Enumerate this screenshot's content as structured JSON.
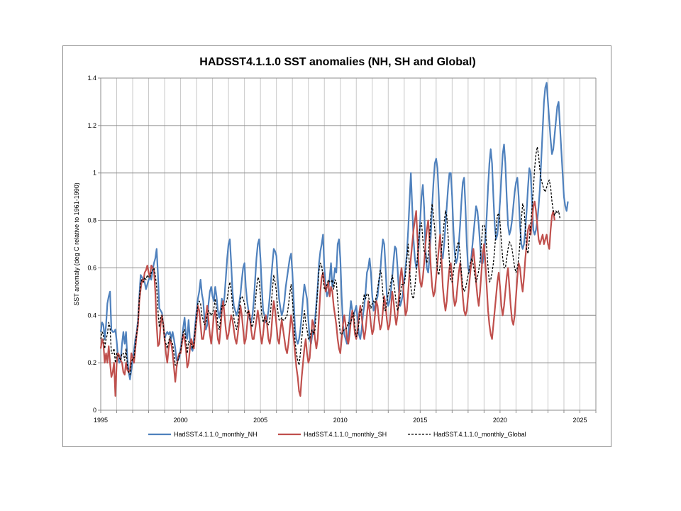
{
  "chart_data": {
    "type": "line",
    "title": "HADSST4.1.1.0 SST anomalies (NH, SH and Global)",
    "xlabel": "",
    "ylabel": "SST anomaly (deg C relative to 1961-1990)",
    "xlim": [
      1995,
      2026
    ],
    "ylim": [
      0,
      1.4
    ],
    "x_ticks": [
      1995,
      2000,
      2005,
      2010,
      2015,
      2020,
      2025
    ],
    "y_ticks": [
      0,
      0.2,
      0.4,
      0.6,
      0.8,
      1,
      1.2,
      1.4
    ],
    "y_tick_labels": [
      "0",
      "0.2",
      "0.4",
      "0.6",
      "0.8",
      "1",
      "1.2",
      "1.4"
    ],
    "grid": true,
    "legend_position": "bottom",
    "x_start": 1995.0,
    "x_step": 0.0833333,
    "series": [
      {
        "name": "HadSST.4.1.1.0_monthly_NH",
        "color": "#4f81bd",
        "dash": "",
        "values": [
          0.33,
          0.37,
          0.36,
          0.3,
          0.36,
          0.45,
          0.48,
          0.5,
          0.34,
          0.33,
          0.33,
          0.34,
          0.29,
          0.22,
          0.2,
          0.21,
          0.28,
          0.33,
          0.28,
          0.33,
          0.22,
          0.16,
          0.13,
          0.17,
          0.21,
          0.25,
          0.3,
          0.33,
          0.38,
          0.48,
          0.57,
          0.56,
          0.55,
          0.54,
          0.51,
          0.53,
          0.55,
          0.56,
          0.55,
          0.59,
          0.62,
          0.64,
          0.68,
          0.57,
          0.43,
          0.42,
          0.41,
          0.36,
          0.3,
          0.32,
          0.33,
          0.32,
          0.33,
          0.3,
          0.33,
          0.3,
          0.26,
          0.21,
          0.21,
          0.22,
          0.26,
          0.3,
          0.35,
          0.39,
          0.32,
          0.3,
          0.38,
          0.3,
          0.26,
          0.25,
          0.3,
          0.36,
          0.42,
          0.47,
          0.5,
          0.55,
          0.49,
          0.46,
          0.38,
          0.34,
          0.36,
          0.45,
          0.5,
          0.52,
          0.48,
          0.46,
          0.52,
          0.48,
          0.42,
          0.39,
          0.42,
          0.47,
          0.43,
          0.48,
          0.56,
          0.64,
          0.7,
          0.72,
          0.62,
          0.5,
          0.44,
          0.42,
          0.4,
          0.42,
          0.45,
          0.49,
          0.55,
          0.6,
          0.62,
          0.52,
          0.46,
          0.42,
          0.38,
          0.37,
          0.4,
          0.46,
          0.55,
          0.64,
          0.7,
          0.72,
          0.64,
          0.52,
          0.42,
          0.4,
          0.37,
          0.38,
          0.42,
          0.48,
          0.55,
          0.62,
          0.68,
          0.67,
          0.65,
          0.55,
          0.47,
          0.43,
          0.4,
          0.42,
          0.46,
          0.52,
          0.56,
          0.6,
          0.64,
          0.66,
          0.58,
          0.46,
          0.34,
          0.3,
          0.28,
          0.3,
          0.34,
          0.4,
          0.47,
          0.53,
          0.5,
          0.47,
          0.38,
          0.3,
          0.28,
          0.32,
          0.34,
          0.38,
          0.45,
          0.52,
          0.62,
          0.67,
          0.7,
          0.74,
          0.6,
          0.52,
          0.48,
          0.5,
          0.56,
          0.62,
          0.52,
          0.55,
          0.6,
          0.58,
          0.7,
          0.72,
          0.64,
          0.48,
          0.36,
          0.32,
          0.3,
          0.28,
          0.32,
          0.4,
          0.46,
          0.42,
          0.4,
          0.42,
          0.44,
          0.38,
          0.32,
          0.3,
          0.34,
          0.4,
          0.44,
          0.5,
          0.58,
          0.6,
          0.64,
          0.58,
          0.48,
          0.42,
          0.44,
          0.46,
          0.48,
          0.54,
          0.58,
          0.66,
          0.72,
          0.7,
          0.6,
          0.48,
          0.44,
          0.46,
          0.5,
          0.56,
          0.63,
          0.69,
          0.68,
          0.6,
          0.5,
          0.44,
          0.46,
          0.49,
          0.55,
          0.6,
          0.66,
          0.76,
          0.88,
          1.0,
          0.86,
          0.72,
          0.64,
          0.6,
          0.62,
          0.7,
          0.8,
          0.9,
          0.95,
          0.85,
          0.68,
          0.6,
          0.58,
          0.64,
          0.74,
          0.86,
          0.96,
          1.04,
          1.06,
          1.02,
          0.9,
          0.74,
          0.66,
          0.64,
          0.7,
          0.78,
          0.86,
          0.94,
          1.0,
          1.0,
          0.9,
          0.76,
          0.66,
          0.62,
          0.64,
          0.7,
          0.78,
          0.88,
          0.96,
          0.98,
          0.86,
          0.7,
          0.6,
          0.58,
          0.62,
          0.68,
          0.74,
          0.8,
          0.86,
          0.84,
          0.78,
          0.7,
          0.62,
          0.62,
          0.66,
          0.72,
          0.82,
          0.94,
          1.04,
          1.1,
          1.04,
          0.9,
          0.78,
          0.72,
          0.74,
          0.8,
          0.88,
          0.98,
          1.08,
          1.12,
          1.04,
          0.9,
          0.78,
          0.74,
          0.76,
          0.8,
          0.86,
          0.92,
          0.96,
          0.98,
          0.9,
          0.78,
          0.7,
          0.68,
          0.7,
          0.76,
          0.84,
          0.94,
          1.02,
          1.0,
          0.88,
          0.76,
          0.74,
          0.76,
          0.8,
          0.86,
          0.94,
          1.06,
          1.18,
          1.3,
          1.36,
          1.38,
          1.3,
          1.22,
          1.14,
          1.08,
          1.1,
          1.16,
          1.22,
          1.28,
          1.3,
          1.2,
          1.1,
          1.0,
          0.9,
          0.86,
          0.84,
          0.88
        ]
      },
      {
        "name": "HadSST.4.1.1.0_monthly_SH",
        "color": "#c0504d",
        "dash": "",
        "values": [
          0.26,
          0.3,
          0.28,
          0.2,
          0.24,
          0.2,
          0.27,
          0.2,
          0.14,
          0.16,
          0.2,
          0.06,
          0.2,
          0.24,
          0.23,
          0.21,
          0.2,
          0.16,
          0.15,
          0.2,
          0.17,
          0.16,
          0.17,
          0.24,
          0.22,
          0.2,
          0.26,
          0.32,
          0.36,
          0.46,
          0.51,
          0.55,
          0.54,
          0.58,
          0.59,
          0.61,
          0.58,
          0.56,
          0.61,
          0.6,
          0.59,
          0.5,
          0.36,
          0.27,
          0.28,
          0.36,
          0.4,
          0.36,
          0.3,
          0.24,
          0.2,
          0.26,
          0.3,
          0.28,
          0.24,
          0.18,
          0.12,
          0.18,
          0.22,
          0.24,
          0.24,
          0.28,
          0.32,
          0.3,
          0.26,
          0.18,
          0.2,
          0.26,
          0.3,
          0.28,
          0.26,
          0.33,
          0.38,
          0.44,
          0.42,
          0.36,
          0.3,
          0.3,
          0.34,
          0.4,
          0.44,
          0.38,
          0.32,
          0.28,
          0.34,
          0.4,
          0.42,
          0.36,
          0.3,
          0.28,
          0.34,
          0.42,
          0.46,
          0.4,
          0.34,
          0.3,
          0.32,
          0.36,
          0.4,
          0.38,
          0.34,
          0.3,
          0.28,
          0.32,
          0.38,
          0.44,
          0.4,
          0.34,
          0.28,
          0.3,
          0.36,
          0.42,
          0.4,
          0.34,
          0.3,
          0.3,
          0.34,
          0.38,
          0.42,
          0.38,
          0.32,
          0.28,
          0.32,
          0.38,
          0.4,
          0.36,
          0.3,
          0.28,
          0.32,
          0.4,
          0.46,
          0.42,
          0.36,
          0.3,
          0.28,
          0.34,
          0.38,
          0.34,
          0.3,
          0.26,
          0.24,
          0.28,
          0.34,
          0.4,
          0.36,
          0.3,
          0.24,
          0.18,
          0.14,
          0.08,
          0.06,
          0.14,
          0.2,
          0.26,
          0.3,
          0.24,
          0.2,
          0.22,
          0.3,
          0.38,
          0.36,
          0.3,
          0.26,
          0.3,
          0.4,
          0.5,
          0.56,
          0.58,
          0.54,
          0.5,
          0.52,
          0.54,
          0.48,
          0.52,
          0.5,
          0.44,
          0.4,
          0.36,
          0.3,
          0.26,
          0.24,
          0.3,
          0.36,
          0.4,
          0.36,
          0.3,
          0.28,
          0.32,
          0.38,
          0.42,
          0.38,
          0.32,
          0.3,
          0.34,
          0.4,
          0.44,
          0.4,
          0.34,
          0.3,
          0.34,
          0.4,
          0.46,
          0.42,
          0.36,
          0.32,
          0.34,
          0.4,
          0.46,
          0.44,
          0.38,
          0.34,
          0.36,
          0.42,
          0.48,
          0.44,
          0.38,
          0.34,
          0.36,
          0.42,
          0.5,
          0.46,
          0.4,
          0.36,
          0.4,
          0.48,
          0.56,
          0.6,
          0.54,
          0.46,
          0.4,
          0.42,
          0.5,
          0.58,
          0.64,
          0.7,
          0.76,
          0.8,
          0.84,
          0.72,
          0.6,
          0.54,
          0.52,
          0.56,
          0.62,
          0.7,
          0.76,
          0.8,
          0.72,
          0.6,
          0.52,
          0.48,
          0.5,
          0.56,
          0.62,
          0.68,
          0.74,
          0.64,
          0.52,
          0.46,
          0.42,
          0.46,
          0.54,
          0.6,
          0.62,
          0.56,
          0.48,
          0.44,
          0.46,
          0.52,
          0.58,
          0.62,
          0.56,
          0.48,
          0.42,
          0.4,
          0.42,
          0.48,
          0.54,
          0.6,
          0.64,
          0.68,
          0.62,
          0.54,
          0.48,
          0.44,
          0.5,
          0.58,
          0.66,
          0.7,
          0.62,
          0.52,
          0.42,
          0.36,
          0.32,
          0.3,
          0.36,
          0.42,
          0.48,
          0.54,
          0.58,
          0.52,
          0.44,
          0.4,
          0.44,
          0.5,
          0.56,
          0.6,
          0.52,
          0.44,
          0.38,
          0.36,
          0.4,
          0.48,
          0.56,
          0.62,
          0.6,
          0.54,
          0.5,
          0.56,
          0.64,
          0.7,
          0.76,
          0.78,
          0.74,
          0.8,
          0.86,
          0.88,
          0.84,
          0.78,
          0.72,
          0.7,
          0.72,
          0.74,
          0.7,
          0.72,
          0.74,
          0.7,
          0.68,
          0.76,
          0.82,
          0.84,
          0.8
        ]
      },
      {
        "name": "HadSST.4.1.1.0_monthly_Global",
        "color": "#000000",
        "dash": "3,2",
        "values": [
          0.3,
          0.33,
          0.32,
          0.26,
          0.3,
          0.32,
          0.37,
          0.35,
          0.24,
          0.24,
          0.26,
          0.2,
          0.24,
          0.23,
          0.22,
          0.21,
          0.24,
          0.24,
          0.21,
          0.26,
          0.19,
          0.16,
          0.15,
          0.2,
          0.22,
          0.22,
          0.28,
          0.32,
          0.37,
          0.47,
          0.54,
          0.55,
          0.54,
          0.56,
          0.55,
          0.57,
          0.56,
          0.56,
          0.58,
          0.59,
          0.6,
          0.57,
          0.52,
          0.42,
          0.35,
          0.39,
          0.4,
          0.36,
          0.3,
          0.28,
          0.26,
          0.29,
          0.31,
          0.29,
          0.28,
          0.24,
          0.19,
          0.19,
          0.21,
          0.23,
          0.25,
          0.29,
          0.33,
          0.34,
          0.29,
          0.24,
          0.29,
          0.28,
          0.28,
          0.26,
          0.28,
          0.34,
          0.4,
          0.45,
          0.46,
          0.45,
          0.4,
          0.38,
          0.36,
          0.37,
          0.4,
          0.42,
          0.41,
          0.4,
          0.41,
          0.43,
          0.47,
          0.42,
          0.36,
          0.34,
          0.38,
          0.44,
          0.44,
          0.44,
          0.45,
          0.47,
          0.51,
          0.54,
          0.51,
          0.44,
          0.39,
          0.36,
          0.34,
          0.37,
          0.42,
          0.47,
          0.48,
          0.47,
          0.45,
          0.41,
          0.41,
          0.42,
          0.39,
          0.36,
          0.35,
          0.38,
          0.44,
          0.51,
          0.56,
          0.55,
          0.48,
          0.4,
          0.37,
          0.39,
          0.38,
          0.37,
          0.36,
          0.38,
          0.44,
          0.51,
          0.57,
          0.54,
          0.5,
          0.42,
          0.38,
          0.38,
          0.39,
          0.38,
          0.38,
          0.39,
          0.4,
          0.44,
          0.49,
          0.53,
          0.47,
          0.38,
          0.29,
          0.24,
          0.21,
          0.19,
          0.24,
          0.3,
          0.36,
          0.42,
          0.37,
          0.34,
          0.3,
          0.3,
          0.33,
          0.34,
          0.32,
          0.34,
          0.42,
          0.51,
          0.59,
          0.62,
          0.61,
          0.56,
          0.51,
          0.51,
          0.53,
          0.55,
          0.54,
          0.54,
          0.55,
          0.51,
          0.55,
          0.54,
          0.47,
          0.38,
          0.32,
          0.32,
          0.33,
          0.34,
          0.34,
          0.35,
          0.37,
          0.36,
          0.37,
          0.4,
          0.41,
          0.35,
          0.31,
          0.32,
          0.37,
          0.42,
          0.42,
          0.45,
          0.49,
          0.47,
          0.49,
          0.49,
          0.45,
          0.43,
          0.45,
          0.46,
          0.45,
          0.48,
          0.51,
          0.55,
          0.59,
          0.57,
          0.49,
          0.42,
          0.42,
          0.46,
          0.49,
          0.51,
          0.54,
          0.57,
          0.54,
          0.5,
          0.45,
          0.42,
          0.44,
          0.48,
          0.53,
          0.53,
          0.53,
          0.57,
          0.64,
          0.7,
          0.6,
          0.52,
          0.48,
          0.47,
          0.52,
          0.58,
          0.65,
          0.72,
          0.78,
          0.79,
          0.72,
          0.67,
          0.66,
          0.62,
          0.65,
          0.72,
          0.82,
          0.87,
          0.82,
          0.76,
          0.66,
          0.59,
          0.57,
          0.61,
          0.68,
          0.73,
          0.79,
          0.84,
          0.82,
          0.73,
          0.62,
          0.55,
          0.54,
          0.58,
          0.63,
          0.67,
          0.7,
          0.71,
          0.66,
          0.58,
          0.52,
          0.5,
          0.51,
          0.54,
          0.57,
          0.6,
          0.63,
          0.64,
          0.61,
          0.57,
          0.54,
          0.56,
          0.59,
          0.63,
          0.7,
          0.78,
          0.78,
          0.76,
          0.68,
          0.6,
          0.54,
          0.55,
          0.58,
          0.62,
          0.68,
          0.76,
          0.82,
          0.83,
          0.79,
          0.71,
          0.64,
          0.6,
          0.6,
          0.64,
          0.68,
          0.71,
          0.7,
          0.68,
          0.64,
          0.6,
          0.58,
          0.6,
          0.64,
          0.71,
          0.8,
          0.87,
          0.85,
          0.77,
          0.68,
          0.66,
          0.72,
          0.78,
          0.85,
          0.93,
          1.02,
          1.08,
          1.11,
          1.07,
          1.01,
          0.97,
          0.95,
          0.93,
          0.92,
          0.94,
          0.96,
          0.97,
          0.94,
          0.88,
          0.84,
          0.82,
          0.84,
          0.83,
          0.84,
          0.81
        ]
      }
    ]
  }
}
